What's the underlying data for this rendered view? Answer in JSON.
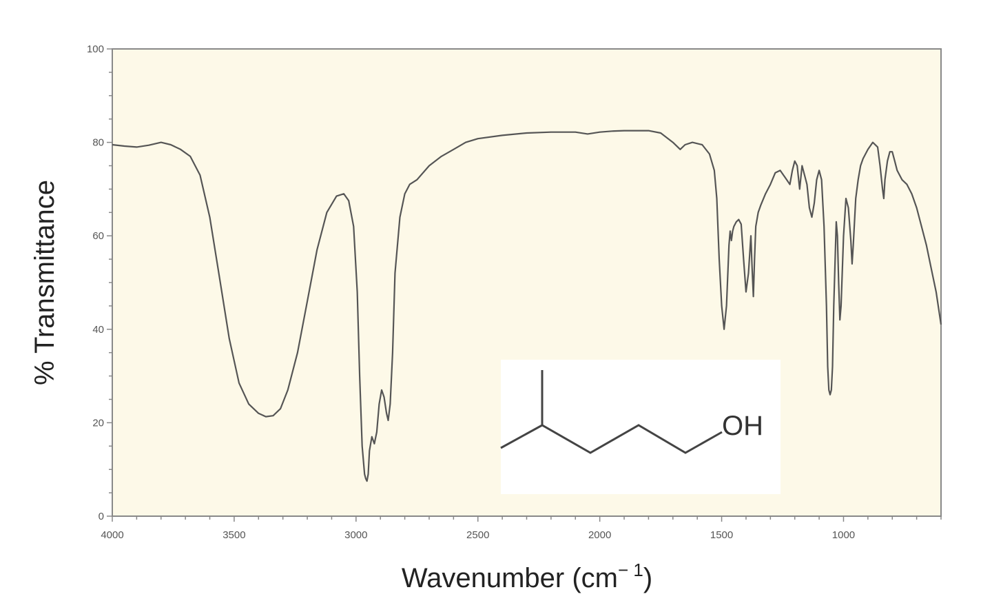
{
  "chart_data": {
    "type": "line",
    "title": "",
    "xlabel": "Wavenumber (cm",
    "xlabel_sup": "− 1",
    "xlabel_close": ")",
    "ylabel": "% Transmittance",
    "xlim": [
      4000,
      600
    ],
    "x_reversed": true,
    "ylim": [
      0,
      100
    ],
    "x_ticks": [
      4000,
      3500,
      3000,
      2500,
      2000,
      1500,
      1000
    ],
    "y_ticks": [
      0,
      20,
      40,
      60,
      80,
      100
    ],
    "grid": false,
    "legend": "none",
    "colors": {
      "plot_background": "#fdf9e8",
      "line": "#555555",
      "frame": "#888888"
    },
    "series": [
      {
        "x": [
          4000,
          3950,
          3900,
          3850,
          3800,
          3760,
          3720,
          3680,
          3640,
          3600,
          3560,
          3520,
          3480,
          3440,
          3400,
          3370,
          3340,
          3310,
          3280,
          3240,
          3200,
          3160,
          3120,
          3080,
          3050,
          3030,
          3010,
          2995,
          2985,
          2975,
          2965,
          2960,
          2955,
          2950,
          2945,
          2935,
          2925,
          2915,
          2905,
          2895,
          2885,
          2875,
          2868,
          2860,
          2850,
          2840,
          2820,
          2800,
          2780,
          2750,
          2700,
          2650,
          2600,
          2550,
          2500,
          2400,
          2300,
          2200,
          2100,
          2050,
          2000,
          1950,
          1900,
          1800,
          1750,
          1700,
          1670,
          1650,
          1620,
          1580,
          1550,
          1530,
          1520,
          1510,
          1500,
          1490,
          1480,
          1470,
          1465,
          1460,
          1455,
          1450,
          1440,
          1430,
          1420,
          1410,
          1400,
          1390,
          1380,
          1375,
          1370,
          1365,
          1360,
          1350,
          1340,
          1320,
          1300,
          1280,
          1260,
          1240,
          1220,
          1210,
          1200,
          1190,
          1180,
          1170,
          1160,
          1150,
          1140,
          1130,
          1120,
          1110,
          1100,
          1090,
          1080,
          1070,
          1065,
          1060,
          1055,
          1050,
          1045,
          1040,
          1030,
          1025,
          1020,
          1015,
          1010,
          1000,
          990,
          980,
          970,
          965,
          960,
          950,
          940,
          930,
          920,
          900,
          880,
          860,
          850,
          840,
          835,
          830,
          820,
          810,
          800,
          790,
          780,
          760,
          740,
          720,
          700,
          680,
          660,
          640,
          620,
          600
        ],
        "values": [
          79.5,
          79.2,
          79.0,
          79.4,
          80.0,
          79.5,
          78.5,
          77.0,
          73.0,
          64.0,
          51.0,
          38.0,
          28.5,
          24.0,
          22.0,
          21.3,
          21.5,
          23.0,
          27.0,
          35.0,
          46.0,
          57.0,
          65.0,
          68.5,
          69.0,
          67.5,
          62.0,
          48.0,
          30.0,
          15.0,
          9.0,
          8.0,
          7.5,
          9.0,
          14.0,
          17.0,
          15.5,
          18.0,
          24.0,
          27.0,
          25.5,
          22.0,
          20.5,
          24.0,
          35.0,
          52.0,
          64.0,
          69.0,
          71.0,
          72.0,
          75.0,
          77.0,
          78.5,
          80.0,
          80.8,
          81.5,
          82.0,
          82.2,
          82.2,
          81.8,
          82.2,
          82.4,
          82.5,
          82.5,
          82.0,
          80.0,
          78.5,
          79.5,
          80.0,
          79.5,
          77.5,
          74.0,
          68.0,
          55.0,
          45.0,
          40.0,
          45.0,
          58.0,
          61.0,
          59.0,
          61.0,
          62.0,
          63.0,
          63.5,
          62.5,
          55.0,
          48.0,
          52.0,
          60.0,
          53.0,
          47.0,
          55.0,
          62.0,
          65.0,
          66.5,
          69.0,
          71.0,
          73.5,
          74.0,
          72.5,
          71.0,
          74.0,
          76.0,
          75.0,
          70.0,
          75.0,
          73.0,
          71.0,
          66.0,
          64.0,
          67.0,
          72.0,
          74.0,
          72.0,
          62.0,
          45.0,
          32.0,
          27.0,
          26.0,
          27.0,
          32.0,
          45.0,
          63.0,
          60.0,
          50.0,
          42.0,
          45.0,
          60.0,
          68.0,
          66.0,
          59.0,
          54.0,
          58.0,
          68.0,
          72.0,
          75.0,
          76.5,
          78.5,
          80.0,
          79.0,
          75.0,
          70.0,
          68.0,
          72.0,
          76.0,
          78.0,
          78.0,
          76.0,
          74.0,
          72.0,
          71.0,
          69.0,
          66.0,
          62.0,
          58.0,
          53.0,
          48.0,
          41.0
        ]
      }
    ]
  },
  "molecule": {
    "label": "OH"
  }
}
